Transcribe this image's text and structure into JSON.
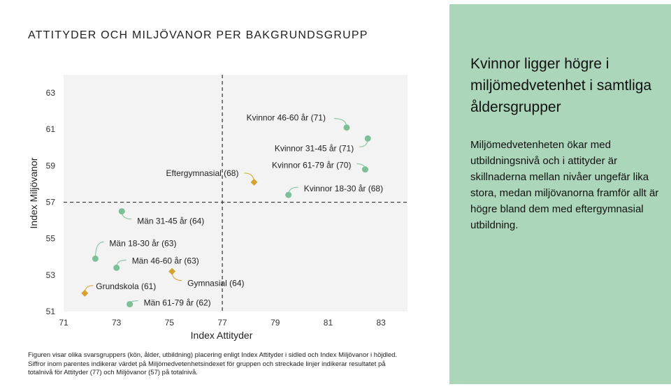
{
  "chart_title": "ATTITYDER OCH MILJÖVANOR PER BAKGRUNDSGRUPP",
  "chart_data": {
    "type": "scatter",
    "xlabel": "Index Attityder",
    "ylabel": "Index Miljövanor",
    "xlim": [
      71,
      84
    ],
    "ylim": [
      51,
      64
    ],
    "xticks": [
      71,
      73,
      75,
      77,
      79,
      81,
      83
    ],
    "yticks": [
      51,
      53,
      55,
      57,
      59,
      61,
      63
    ],
    "reference_lines": {
      "x": 77,
      "y": 57
    },
    "grid": false,
    "background": "#f3f3f3",
    "colors": {
      "gender_age": "#7dbf98",
      "education": "#d4a32e"
    },
    "points": [
      {
        "label": "Kvinnor 46-60 år (71)",
        "x": 81.7,
        "y": 61.1,
        "group": "gender_age",
        "marker": "circle"
      },
      {
        "label": "Kvinnor 31-45 år (71)",
        "x": 82.5,
        "y": 60.5,
        "group": "gender_age",
        "marker": "circle"
      },
      {
        "label": "Kvinnor 61-79 år (70)",
        "x": 82.4,
        "y": 58.8,
        "group": "gender_age",
        "marker": "circle"
      },
      {
        "label": "Kvinnor 18-30 år (68)",
        "x": 79.5,
        "y": 57.4,
        "group": "gender_age",
        "marker": "circle"
      },
      {
        "label": "Eftergymnasial (68)",
        "x": 78.2,
        "y": 58.1,
        "group": "education",
        "marker": "diamond"
      },
      {
        "label": "Män 31-45 år (64)",
        "x": 73.2,
        "y": 56.5,
        "group": "gender_age",
        "marker": "circle"
      },
      {
        "label": "Män 18-30 år (63)",
        "x": 72.2,
        "y": 53.9,
        "group": "gender_age",
        "marker": "circle"
      },
      {
        "label": "Män 46-60 år (63)",
        "x": 73.0,
        "y": 53.4,
        "group": "gender_age",
        "marker": "circle"
      },
      {
        "label": "Gymnasial (64)",
        "x": 75.1,
        "y": 53.2,
        "group": "education",
        "marker": "diamond"
      },
      {
        "label": "Grundskola (61)",
        "x": 71.8,
        "y": 52.0,
        "group": "education",
        "marker": "diamond"
      },
      {
        "label": "Män 61-79 år (62)",
        "x": 73.5,
        "y": 51.4,
        "group": "gender_age",
        "marker": "circle"
      }
    ]
  },
  "caption_lines": [
    "Figuren visar olika svarsgruppers (kön, ålder, utbildning) placering enligt Index Attityder i sidled och Index Miljövanor i höjdled.",
    "Siffror inom parentes indikerar värdet på Miljömedvetenhetsindexet för gruppen och streckade linjer indikerar resultatet på",
    "totalnivå för Attityder (77) och Miljövanor (57) på totalnivå."
  ],
  "side_panel": {
    "background": "#abd6ba",
    "heading": "Kvinnor ligger högre i miljömedvetenhet i samtliga åldersgrupper",
    "body": "Miljömedvetenheten ökar med utbildningsnivå och i attityder är skillnaderna mellan nivåer ungefär lika stora, medan miljövanorna framför allt är högre bland dem med eftergymnasial utbildning."
  }
}
